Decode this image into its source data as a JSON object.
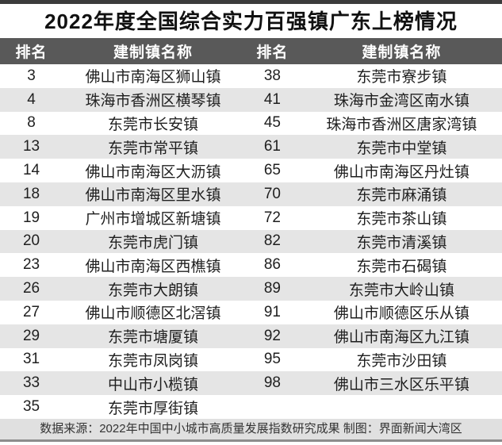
{
  "title": "2022年度全国综合实力百强镇广东上榜情况",
  "chart_data": {
    "type": "table",
    "title": "2022年度全国综合实力百强镇广东上榜情况",
    "columns": [
      "排名",
      "建制镇名称",
      "排名",
      "建制镇名称"
    ],
    "rows": [
      [
        "3",
        "佛山市南海区狮山镇",
        "38",
        "东莞市寮步镇"
      ],
      [
        "4",
        "珠海市香洲区横琴镇",
        "41",
        "珠海市金湾区南水镇"
      ],
      [
        "8",
        "东莞市长安镇",
        "45",
        "珠海市香洲区唐家湾镇"
      ],
      [
        "13",
        "东莞市常平镇",
        "61",
        "东莞市中堂镇"
      ],
      [
        "14",
        "佛山市南海区大沥镇",
        "65",
        "佛山市南海区丹灶镇"
      ],
      [
        "18",
        "佛山市南海区里水镇",
        "70",
        "东莞市麻涌镇"
      ],
      [
        "19",
        "广州市增城区新塘镇",
        "72",
        "东莞市茶山镇"
      ],
      [
        "20",
        "东莞市虎门镇",
        "82",
        "东莞市清溪镇"
      ],
      [
        "23",
        "佛山市南海区西樵镇",
        "86",
        "东莞市石碣镇"
      ],
      [
        "26",
        "东莞市大朗镇",
        "89",
        "东莞市大岭山镇"
      ],
      [
        "27",
        "佛山市顺德区北滘镇",
        "91",
        "佛山市顺德区乐从镇"
      ],
      [
        "29",
        "东莞市塘厦镇",
        "92",
        "佛山市南海区九江镇"
      ],
      [
        "31",
        "东莞市凤岗镇",
        "95",
        "东莞市沙田镇"
      ],
      [
        "33",
        "中山市小榄镇",
        "98",
        "佛山市三水区乐平镇"
      ],
      [
        "35",
        "东莞市厚街镇",
        "",
        ""
      ]
    ],
    "source_note": "数据来源：2022年中国中小城市高质量发展指数研究成果 制图：界面新闻大湾区",
    "layout": {
      "grid": false,
      "row_striping": true
    }
  },
  "footer": {
    "text": "数据来源：2022年中国中小城市高质量发展指数研究成果 制图：界面新闻大湾区"
  },
  "colors": {
    "header_bg": "#595959",
    "header_text": "#ffffff",
    "row_alt_bg": "#e5e5e5",
    "row_bg": "#ffffff",
    "footer_bg": "#e0e0e0",
    "top_bar": "#3b3b3b",
    "bottom_line": "#8d8d8d",
    "title_text": "#111111"
  }
}
